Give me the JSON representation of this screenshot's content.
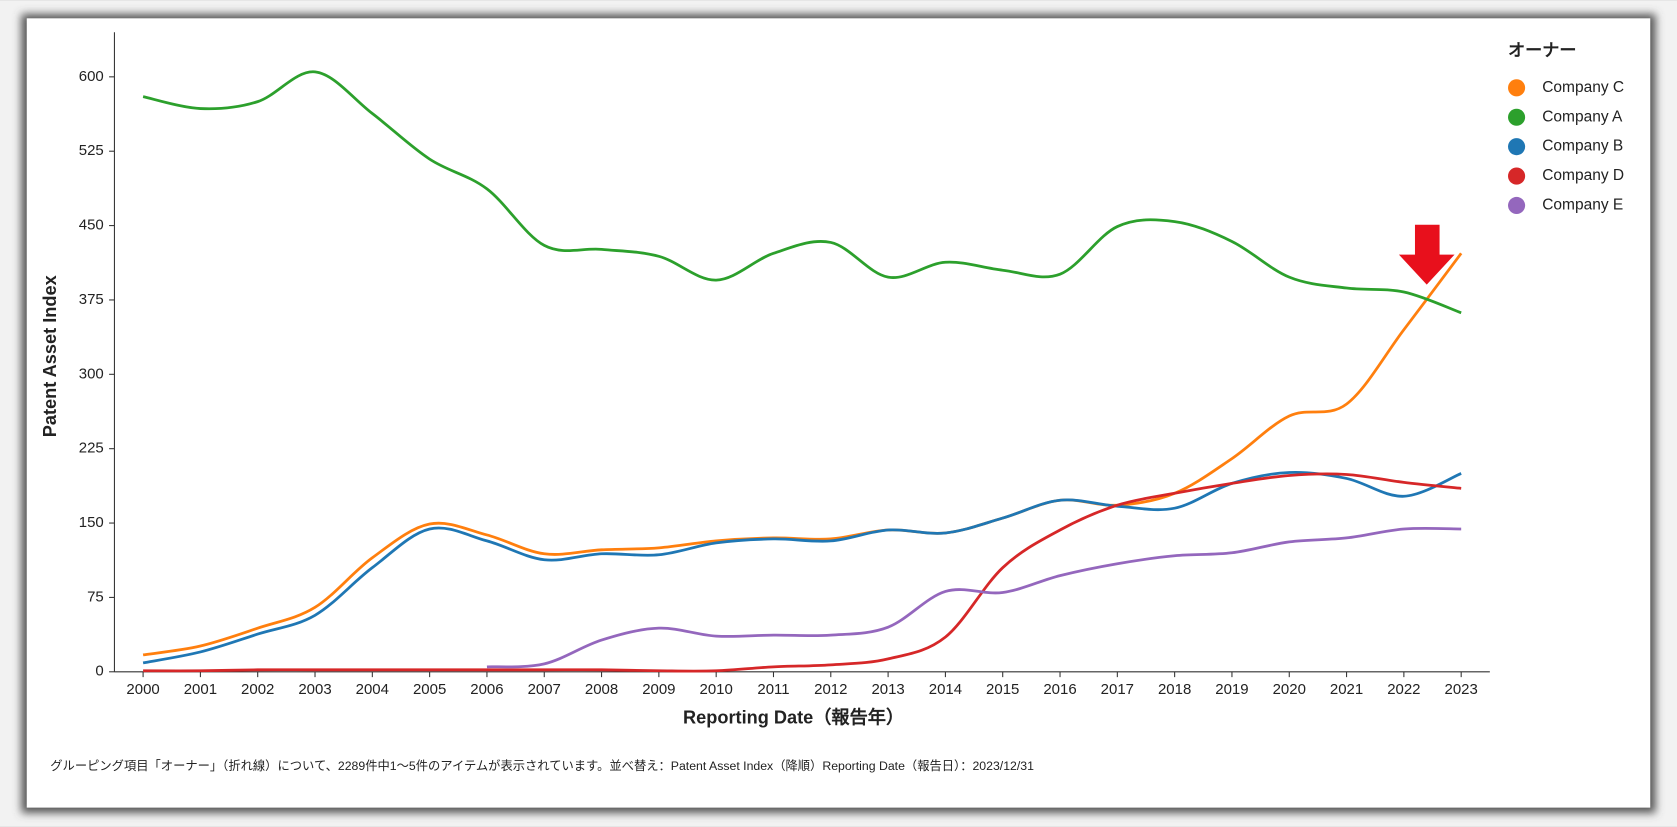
{
  "chart_data": {
    "type": "line",
    "x_label": "Reporting Date（報告年）",
    "y_label": "Patent Asset Index",
    "legend_title": "オーナー",
    "footer": "グルーピング項目「オーナー」（折れ線）について、2289件中1〜5件のアイテムが表示されています。並べ替え：Patent Asset Index（降順）Reporting Date（報告日）：2023/12/31",
    "x": [
      2000,
      2001,
      2002,
      2003,
      2004,
      2005,
      2006,
      2007,
      2008,
      2009,
      2010,
      2011,
      2012,
      2013,
      2014,
      2015,
      2016,
      2017,
      2018,
      2019,
      2020,
      2021,
      2022,
      2023
    ],
    "xlim": [
      1999.5,
      2023.5
    ],
    "xticks": [
      2000,
      2001,
      2002,
      2003,
      2004,
      2005,
      2006,
      2007,
      2008,
      2009,
      2010,
      2011,
      2012,
      2013,
      2014,
      2015,
      2016,
      2017,
      2018,
      2019,
      2020,
      2021,
      2022,
      2023
    ],
    "ylim": [
      0,
      645
    ],
    "yticks": [
      0,
      75,
      150,
      225,
      300,
      375,
      450,
      525,
      600
    ],
    "series": [
      {
        "name": "Company C",
        "color": "#ff7f0e",
        "values": [
          17,
          26,
          44,
          65,
          115,
          149,
          138,
          119,
          123,
          125,
          132,
          135,
          134,
          143,
          140,
          155,
          173,
          168,
          180,
          215,
          258,
          270,
          345,
          422
        ]
      },
      {
        "name": "Company A",
        "color": "#2ca02c",
        "values": [
          580,
          568,
          575,
          605,
          563,
          517,
          487,
          430,
          426,
          419,
          395,
          422,
          433,
          398,
          413,
          405,
          401,
          449,
          454,
          434,
          398,
          387,
          383,
          362
        ]
      },
      {
        "name": "Company B",
        "color": "#1f77b4",
        "values": [
          9,
          20,
          38,
          57,
          105,
          144,
          132,
          113,
          119,
          118,
          130,
          134,
          132,
          143,
          140,
          155,
          173,
          167,
          165,
          190,
          201,
          195,
          177,
          200
        ]
      },
      {
        "name": "Company D",
        "color": "#d62728",
        "values": [
          1,
          1,
          2,
          2,
          2,
          2,
          2,
          2,
          2,
          1,
          1,
          5,
          7,
          13,
          35,
          105,
          143,
          168,
          180,
          190,
          198,
          199,
          191,
          185
        ]
      },
      {
        "name": "Company E",
        "color": "#9467bd",
        "values": [
          null,
          null,
          null,
          null,
          null,
          null,
          5,
          8,
          32,
          44,
          36,
          37,
          37,
          45,
          81,
          80,
          97,
          109,
          117,
          120,
          131,
          135,
          144,
          144
        ]
      }
    ]
  }
}
